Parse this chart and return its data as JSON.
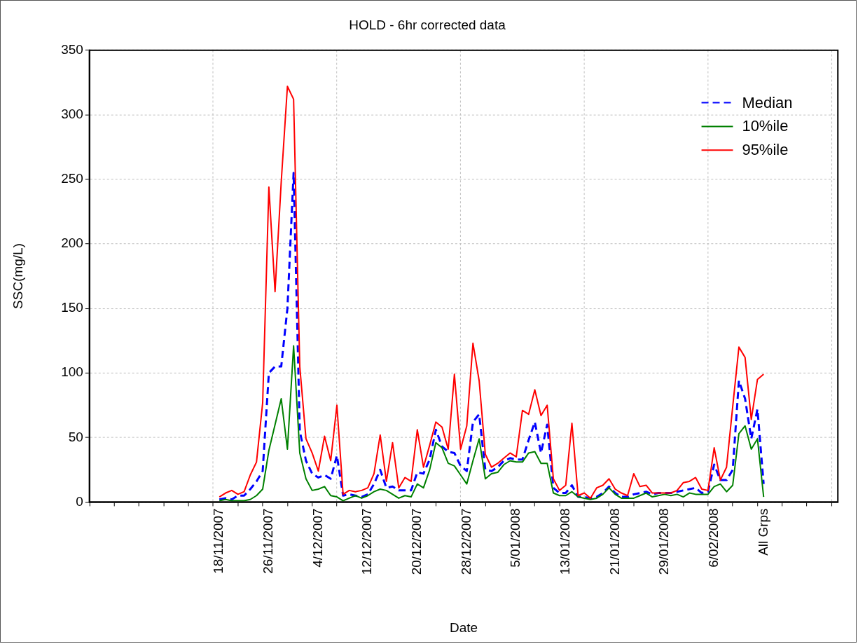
{
  "chart_data": {
    "type": "line",
    "title": "HOLD - 6hr corrected data",
    "xlabel": "Date",
    "ylabel": "SSC(mg/L)",
    "categories": [
      null,
      null,
      null,
      null,
      null,
      null,
      null,
      null,
      null,
      null,
      null,
      null,
      null,
      null,
      null,
      null,
      null,
      null,
      null,
      null,
      null,
      "18/11/2007",
      null,
      null,
      null,
      null,
      null,
      null,
      null,
      "26/11/2007",
      null,
      null,
      null,
      null,
      null,
      null,
      null,
      "4/12/2007",
      null,
      null,
      null,
      null,
      null,
      null,
      null,
      "12/12/2007",
      null,
      null,
      null,
      null,
      null,
      null,
      null,
      "20/12/2007",
      null,
      null,
      null,
      null,
      null,
      null,
      null,
      "28/12/2007",
      null,
      null,
      null,
      null,
      null,
      null,
      null,
      "5/01/2008",
      null,
      null,
      null,
      null,
      null,
      null,
      null,
      "13/01/2008",
      null,
      null,
      null,
      null,
      null,
      null,
      null,
      "21/01/2008",
      null,
      null,
      null,
      null,
      null,
      null,
      null,
      "29/01/2008",
      null,
      null,
      null,
      null,
      null,
      null,
      null,
      "6/02/2008",
      null,
      null,
      null,
      null,
      null,
      null,
      null,
      "All Grps",
      null,
      null,
      null,
      null,
      null,
      null,
      null,
      null,
      null,
      null,
      null,
      null
    ],
    "series": [
      {
        "name": "Median",
        "color": "#0000ff",
        "line_style": "dashed",
        "values": [
          null,
          null,
          null,
          null,
          null,
          null,
          null,
          null,
          null,
          null,
          null,
          null,
          null,
          null,
          null,
          null,
          null,
          null,
          null,
          null,
          null,
          2,
          3,
          2,
          5,
          5,
          10,
          16,
          24,
          100,
          105,
          105,
          150,
          255,
          55,
          32,
          22,
          19,
          21,
          18,
          36,
          5,
          6,
          5,
          4,
          6,
          14,
          25,
          11,
          12,
          9,
          9,
          9,
          23,
          22,
          33,
          56,
          43,
          39,
          38,
          28,
          24,
          62,
          68,
          25,
          24,
          27,
          32,
          34,
          33,
          33,
          48,
          62,
          38,
          60,
          11,
          7,
          7,
          13,
          4,
          4,
          3,
          4,
          7,
          12,
          7,
          4,
          4,
          6,
          7,
          8,
          6,
          7,
          7,
          7,
          8,
          9,
          10,
          11,
          7,
          8,
          29,
          17,
          17,
          25,
          94,
          80,
          49,
          72,
          14,
          null,
          null,
          null,
          null,
          null,
          null,
          null,
          null,
          null,
          null,
          null,
          null
        ]
      },
      {
        "name": "10%ile",
        "color": "#008000",
        "line_style": "solid",
        "values": [
          null,
          null,
          null,
          null,
          null,
          null,
          null,
          null,
          null,
          null,
          null,
          null,
          null,
          null,
          null,
          null,
          null,
          null,
          null,
          null,
          null,
          1,
          2,
          1,
          1,
          1,
          2,
          5,
          10,
          40,
          60,
          80,
          41,
          121,
          38,
          18,
          9,
          10,
          12,
          5,
          4,
          1,
          3,
          5,
          3,
          5,
          8,
          10,
          9,
          6,
          3,
          5,
          4,
          14,
          11,
          25,
          46,
          42,
          30,
          28,
          21,
          14,
          32,
          49,
          18,
          22,
          23,
          29,
          32,
          31,
          31,
          38,
          39,
          30,
          30,
          7,
          5,
          5,
          8,
          4,
          3,
          2,
          3,
          6,
          11,
          6,
          3,
          3,
          3,
          5,
          7,
          4,
          5,
          6,
          5,
          6,
          4,
          7,
          6,
          6,
          6,
          12,
          14,
          8,
          13,
          53,
          59,
          41,
          49,
          4,
          null,
          null,
          null,
          null,
          null,
          null,
          null,
          null,
          null,
          null,
          null,
          null
        ]
      },
      {
        "name": "95%ile",
        "color": "#ff0000",
        "line_style": "solid",
        "values": [
          null,
          null,
          null,
          null,
          null,
          null,
          null,
          null,
          null,
          null,
          null,
          null,
          null,
          null,
          null,
          null,
          null,
          null,
          null,
          null,
          null,
          4,
          7,
          9,
          6,
          8,
          21,
          31,
          77,
          244,
          163,
          248,
          322,
          312,
          105,
          49,
          38,
          24,
          51,
          32,
          75,
          6,
          9,
          8,
          9,
          11,
          22,
          52,
          16,
          46,
          11,
          19,
          16,
          56,
          27,
          44,
          62,
          58,
          41,
          99,
          41,
          59,
          123,
          94,
          37,
          27,
          30,
          34,
          38,
          35,
          71,
          68,
          87,
          67,
          75,
          18,
          9,
          13,
          61,
          5,
          7,
          3,
          11,
          13,
          18,
          10,
          7,
          5,
          22,
          12,
          13,
          7,
          7,
          7,
          7,
          9,
          15,
          16,
          19,
          10,
          9,
          42,
          17,
          27,
          74,
          120,
          112,
          64,
          95,
          99,
          null,
          null,
          null,
          null,
          null,
          null,
          null,
          null,
          null,
          null,
          null,
          null
        ]
      }
    ],
    "ylim": [
      0,
      350
    ],
    "yticks": [
      0,
      50,
      100,
      150,
      200,
      250,
      300,
      350
    ],
    "grid": true,
    "legend": "top right"
  }
}
